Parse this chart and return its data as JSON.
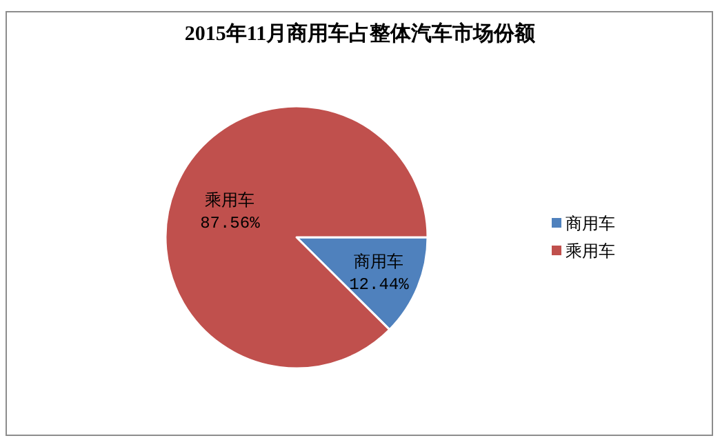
{
  "chart_data": {
    "type": "pie",
    "title": "2015年11月商用车占整体汽车市场份额",
    "categories": [
      "商用车",
      "乘用车"
    ],
    "values": [
      12.44,
      87.56
    ],
    "colors": [
      "#4f81bd",
      "#c0504d"
    ],
    "value_labels": [
      "12.44%",
      "87.56%"
    ],
    "legend": "right"
  }
}
